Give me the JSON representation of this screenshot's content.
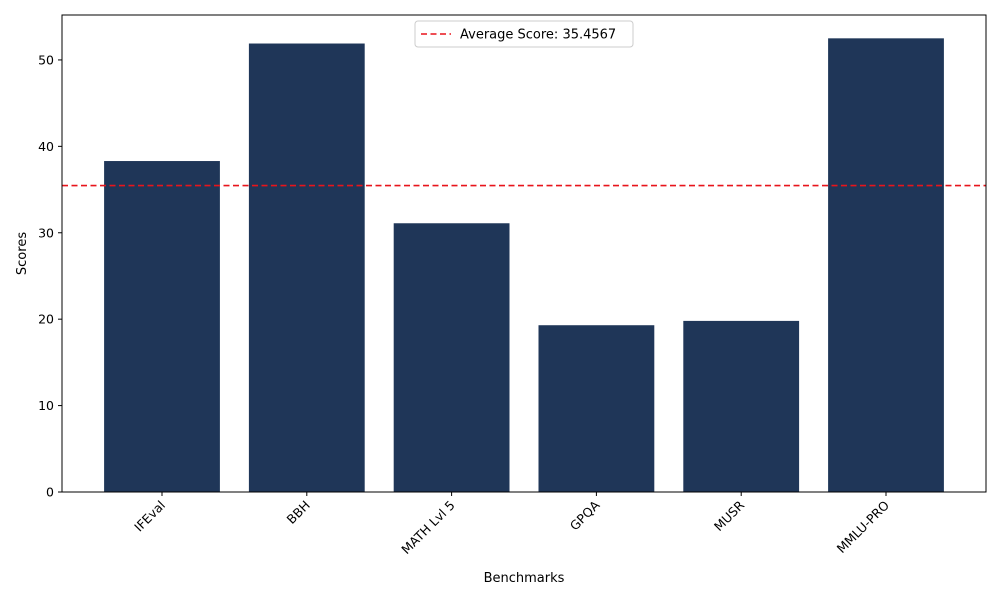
{
  "chart_data": {
    "type": "bar",
    "categories": [
      "IFEval",
      "BBH",
      "MATH Lvl 5",
      "GPQA",
      "MUSR",
      "MMLU-PRO"
    ],
    "values": [
      38.3,
      51.9,
      31.1,
      19.3,
      19.8,
      52.5
    ],
    "xlabel": "Benchmarks",
    "ylabel": "Scores",
    "ylim": [
      0,
      55.2
    ],
    "yticks": [
      0,
      10,
      20,
      30,
      40,
      50
    ],
    "grid": false,
    "legend_position": "top-center",
    "reference_line": {
      "value": 35.4567,
      "label": "Average Score: 35.4567",
      "style": "dashed"
    },
    "colors": {
      "bar": "#1f3658",
      "reference_line": "#e8141b",
      "axis": "#000000"
    }
  }
}
